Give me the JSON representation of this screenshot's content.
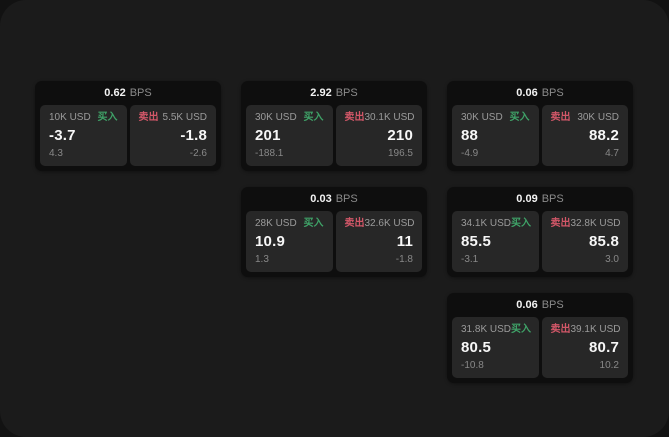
{
  "labels": {
    "bps_unit": "BPS",
    "buy": "买入",
    "sell": "卖出"
  },
  "colors": {
    "buy": "#3fa368",
    "sell": "#d25768",
    "card_bg": "#0e0e0e",
    "panel_bg": "#272727",
    "surface_bg": "#1b1b1b"
  },
  "cards": [
    {
      "bps": "0.62",
      "buy": {
        "amount": "10K USD",
        "price": "-3.7",
        "change": "4.3"
      },
      "sell": {
        "amount": "5.5K USD",
        "price": "-1.8",
        "change": "-2.6"
      }
    },
    {
      "bps": "2.92",
      "buy": {
        "amount": "30K USD",
        "price": "201",
        "change": "-188.1"
      },
      "sell": {
        "amount": "30.1K USD",
        "price": "210",
        "change": "196.5"
      }
    },
    {
      "bps": "0.06",
      "buy": {
        "amount": "30K USD",
        "price": "88",
        "change": "-4.9"
      },
      "sell": {
        "amount": "30K USD",
        "price": "88.2",
        "change": "4.7"
      }
    },
    {
      "bps": "0.03",
      "buy": {
        "amount": "28K USD",
        "price": "10.9",
        "change": "1.3"
      },
      "sell": {
        "amount": "32.6K USD",
        "price": "11",
        "change": "-1.8"
      }
    },
    {
      "bps": "0.09",
      "buy": {
        "amount": "34.1K USD",
        "price": "85.5",
        "change": "-3.1"
      },
      "sell": {
        "amount": "32.8K USD",
        "price": "85.8",
        "change": "3.0"
      }
    },
    {
      "bps": "0.06",
      "buy": {
        "amount": "31.8K USD",
        "price": "80.5",
        "change": "-10.8"
      },
      "sell": {
        "amount": "39.1K USD",
        "price": "80.7",
        "change": "10.2"
      }
    }
  ]
}
